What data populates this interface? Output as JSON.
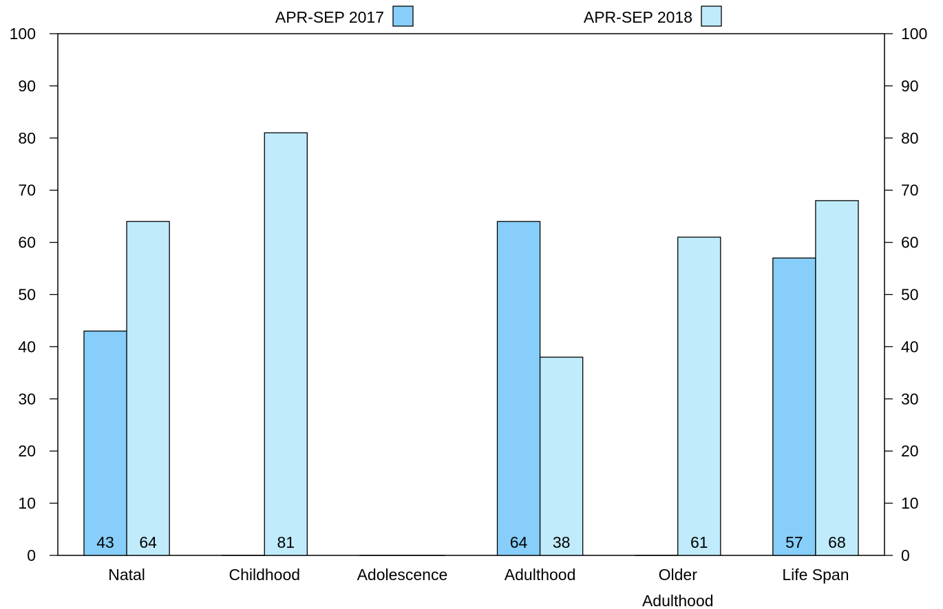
{
  "chart_data": {
    "type": "bar",
    "categories": [
      "Natal",
      "Childhood",
      "Adolescence",
      "Adulthood",
      "Older Adulthood",
      "Life Span"
    ],
    "category_lines": [
      [
        "Natal"
      ],
      [
        "Childhood"
      ],
      [
        "Adolescence"
      ],
      [
        "Adulthood"
      ],
      [
        "Older",
        "Adulthood"
      ],
      [
        "Life Span"
      ]
    ],
    "series": [
      {
        "name": "APR-SEP 2017",
        "color": "#87cefa",
        "values": [
          43,
          null,
          null,
          64,
          null,
          57
        ]
      },
      {
        "name": "APR-SEP 2018",
        "color": "#bfebfb",
        "values": [
          64,
          81,
          null,
          38,
          61,
          68
        ]
      }
    ],
    "ylim": [
      0,
      100
    ],
    "yticks": [
      "0",
      "10",
      "20",
      "30",
      "40",
      "50",
      "60",
      "70",
      "80",
      "90",
      "100"
    ],
    "legend_position": "top",
    "grid": false,
    "secondary_y_axis": true,
    "data_labels": true
  }
}
